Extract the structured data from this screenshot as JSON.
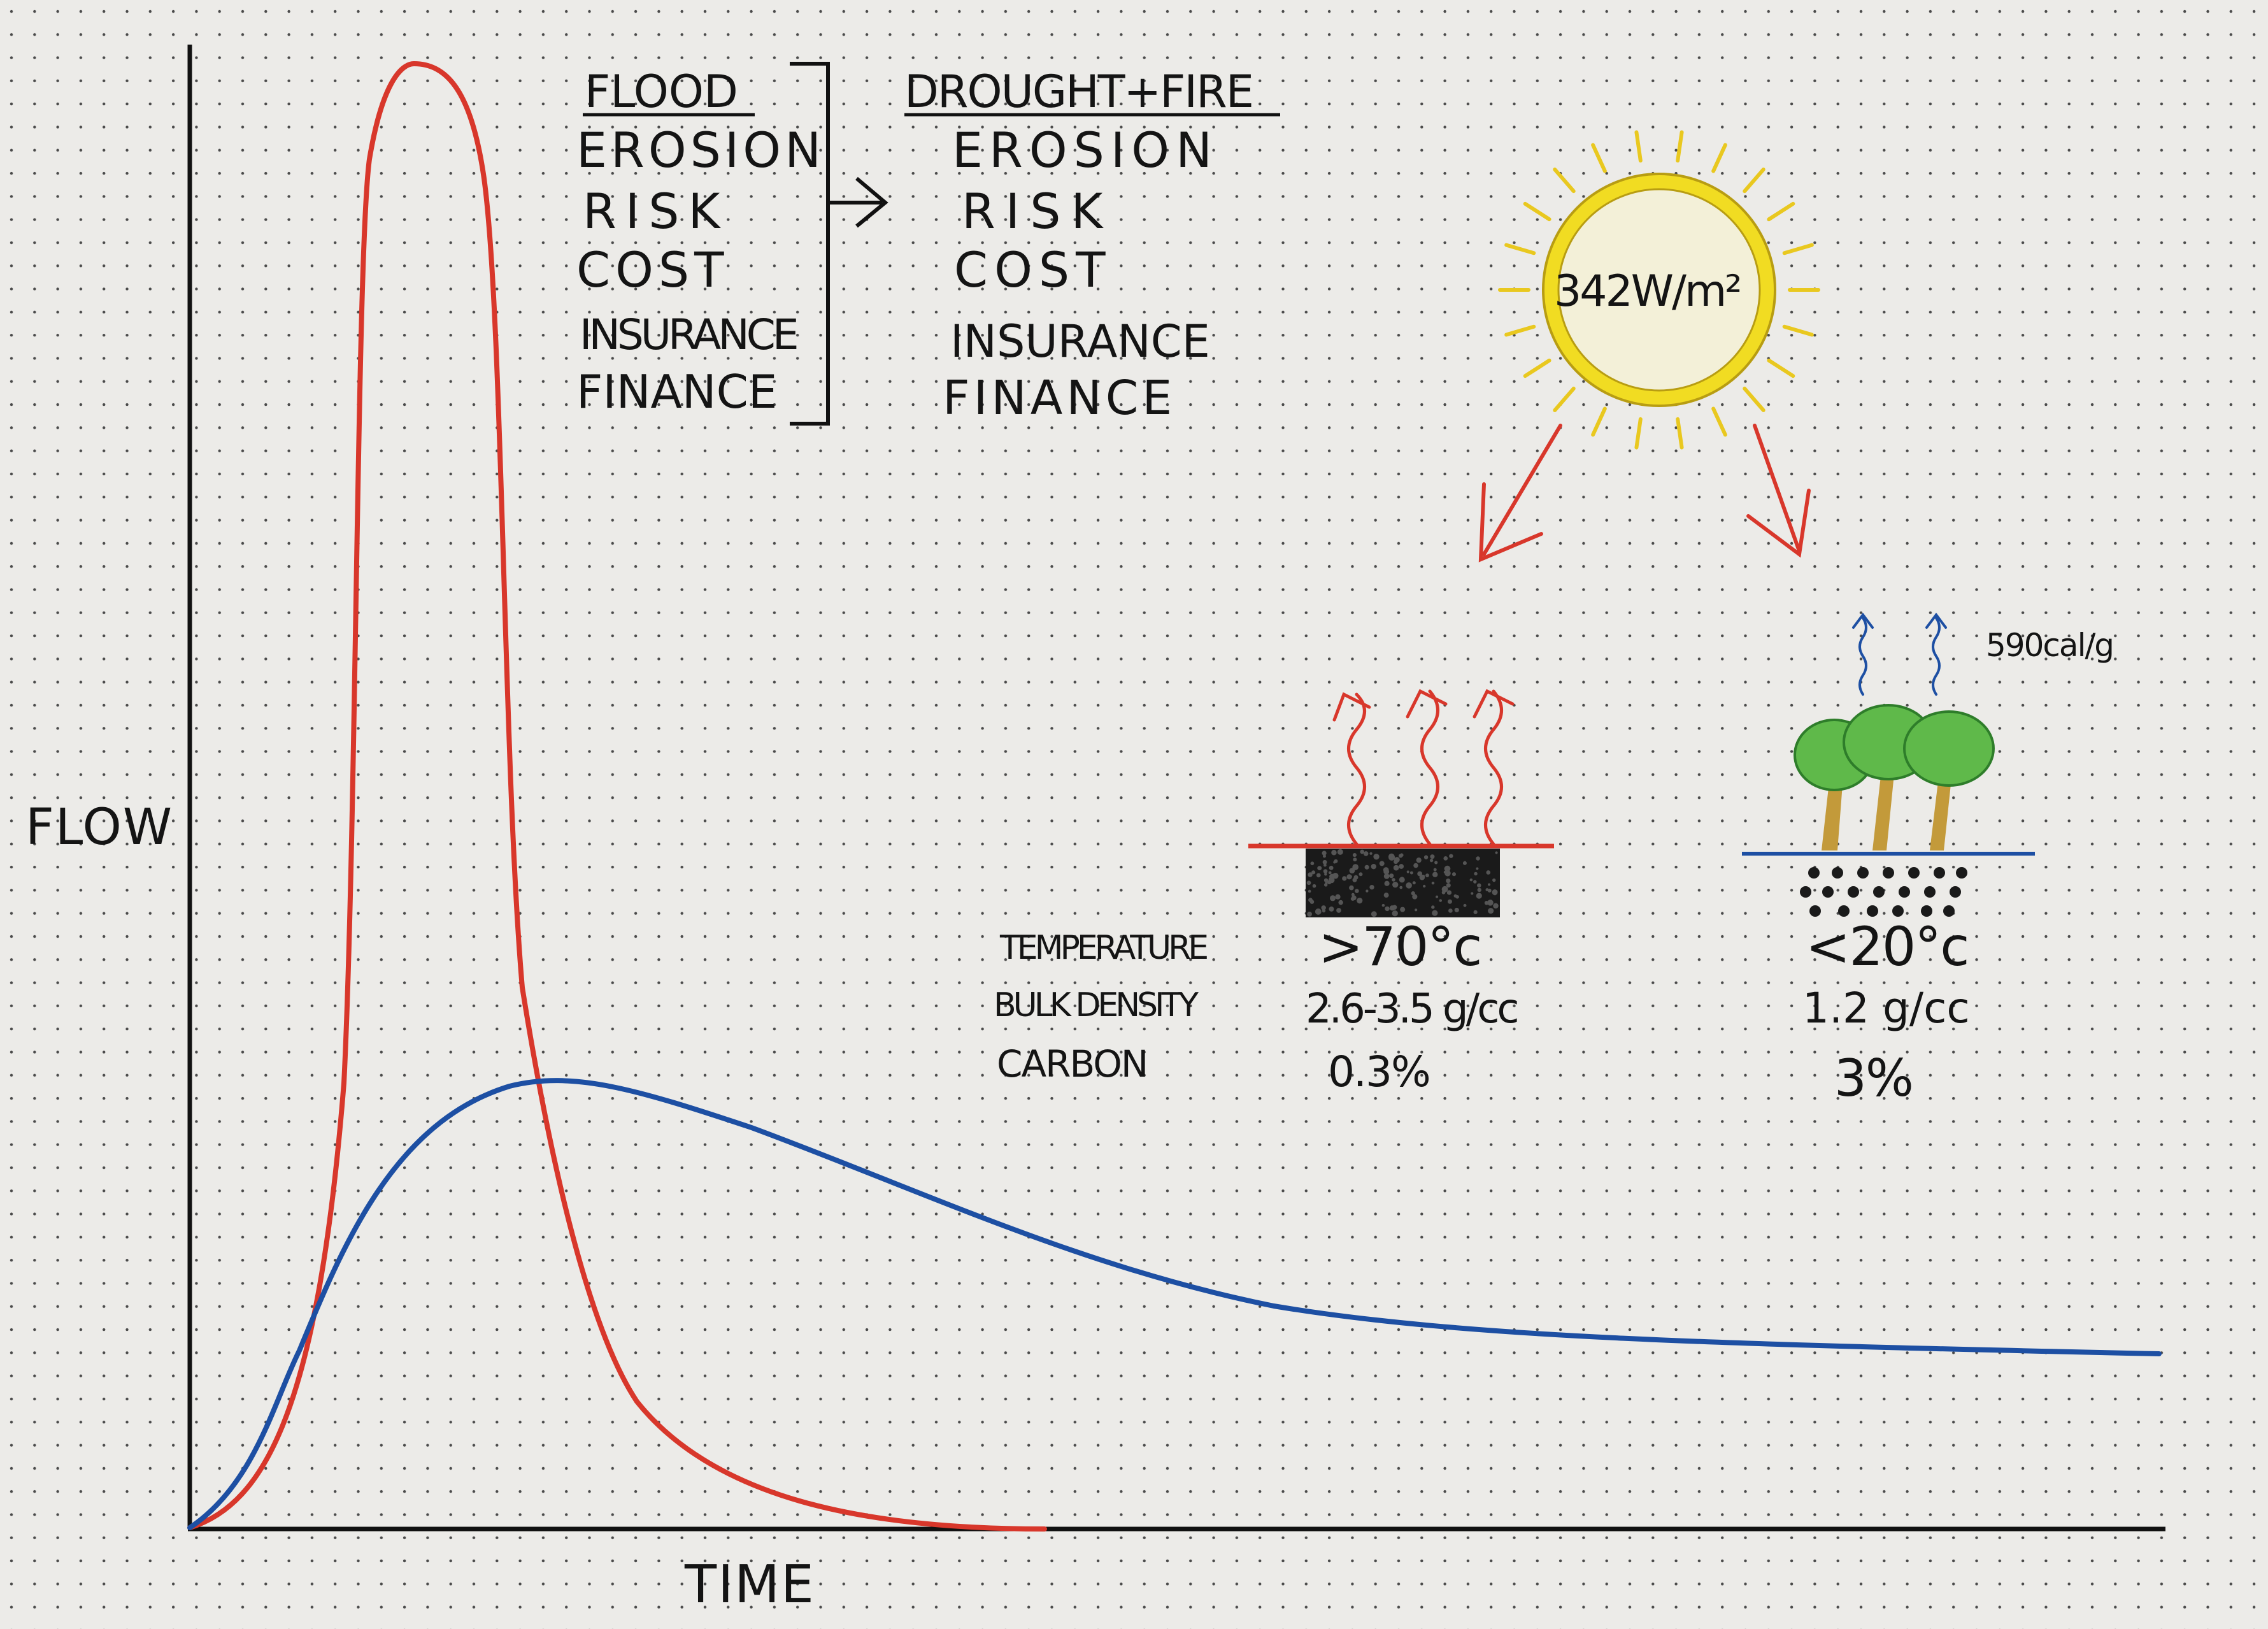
{
  "axes": {
    "ylabel": "FLOW",
    "xlabel": "TIME"
  },
  "curves": {
    "red_color": "#d8372b",
    "blue_color": "#1d4fa3"
  },
  "comparison": {
    "left_title": "FLOOD",
    "left_items": [
      "EROSION",
      "RISK",
      "COST",
      "INSURANCE",
      "FINANCE"
    ],
    "right_title": "DROUGHT+FIRE",
    "right_items": [
      "EROSION",
      "RISK",
      "COST",
      "INSURANCE",
      "FINANCE"
    ]
  },
  "sun": {
    "label": "342W/m²",
    "color": "#f1dc22"
  },
  "right_panel": {
    "evaporation_label": "590cal/g",
    "row_labels": [
      "TEMPERATURE",
      "BULK DENSITY",
      "CARBON"
    ],
    "bare": {
      "temperature": ">70°c",
      "bulk_density": "2.6-3.5 g/cc",
      "carbon": "0.3%"
    },
    "vegetated": {
      "temperature": "<20°c",
      "bulk_density": "1.2 g/cc",
      "carbon": "3%"
    }
  }
}
